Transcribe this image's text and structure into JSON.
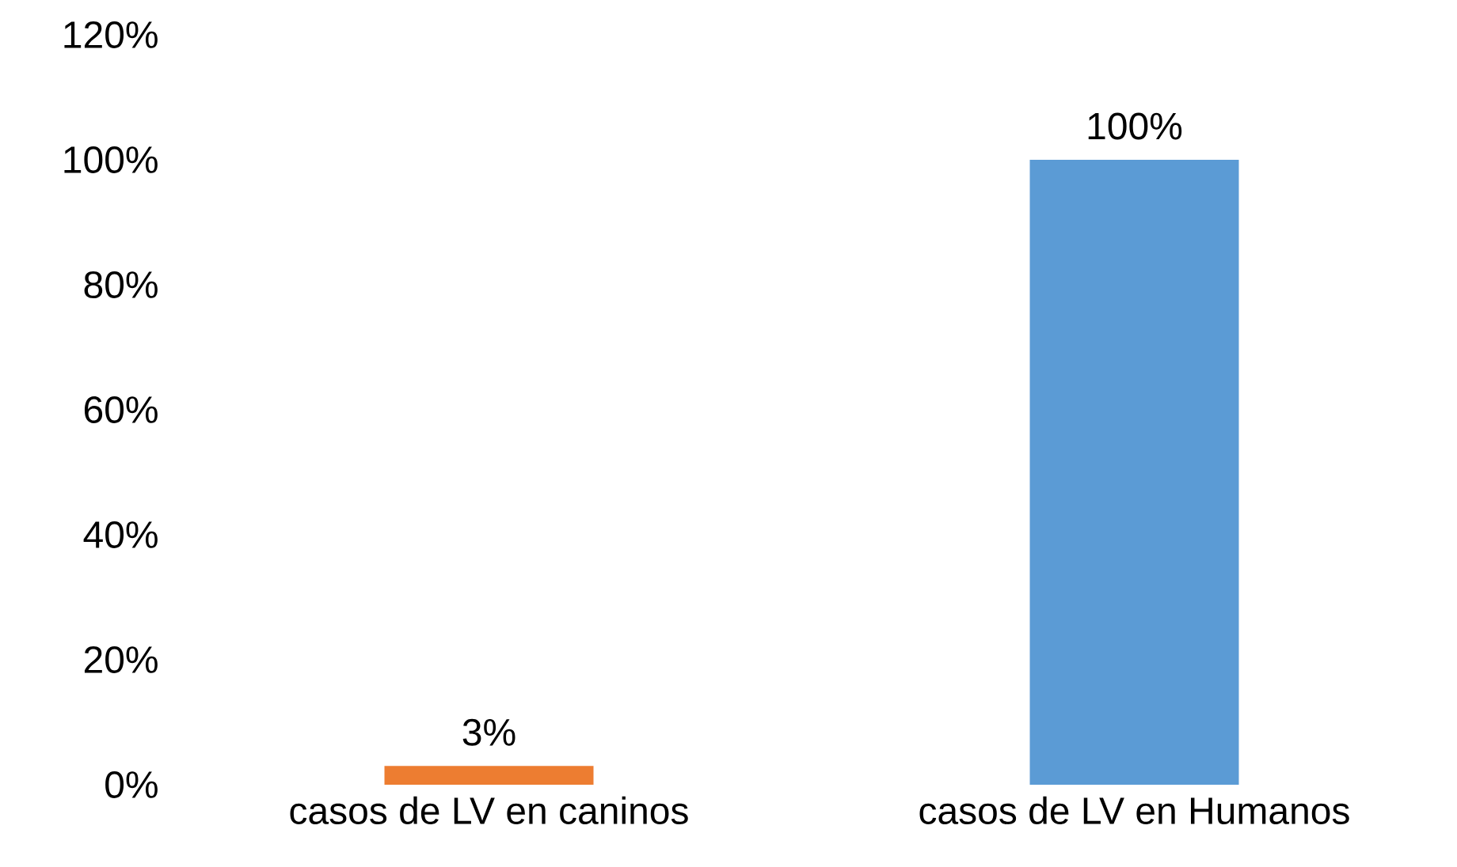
{
  "chart_data": {
    "type": "bar",
    "categories": [
      "casos de LV en caninos",
      "casos de LV en Humanos"
    ],
    "values": [
      3,
      100
    ],
    "colors": [
      "#ed7d31",
      "#5b9bd5"
    ],
    "value_labels": [
      "3%",
      "100%"
    ],
    "ylim": [
      0,
      120
    ],
    "yticks": [
      {
        "value": 0,
        "label": "0%"
      },
      {
        "value": 20,
        "label": "20%"
      },
      {
        "value": 40,
        "label": "40%"
      },
      {
        "value": 60,
        "label": "60%"
      },
      {
        "value": 80,
        "label": "80%"
      },
      {
        "value": 100,
        "label": "100%"
      },
      {
        "value": 120,
        "label": "120%"
      }
    ],
    "grid": false
  }
}
